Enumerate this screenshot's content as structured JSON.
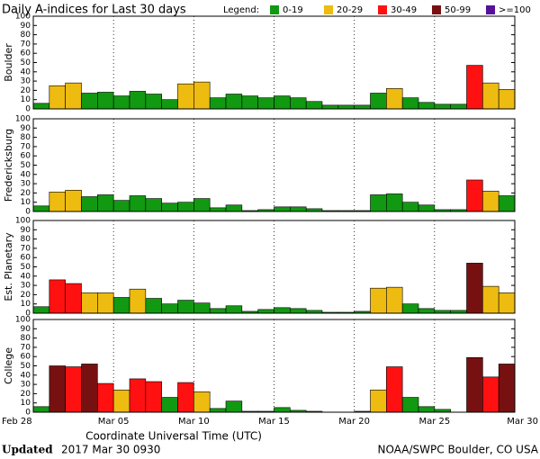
{
  "title": "Daily A-indices for Last 30 days",
  "legend": {
    "title": "Legend:",
    "items": [
      {
        "label": "0-19",
        "color": "#119911"
      },
      {
        "label": "20-29",
        "color": "#eebb11"
      },
      {
        "label": "30-49",
        "color": "#ff1111"
      },
      {
        "label": "50-99",
        "color": "#771111"
      },
      {
        "label": ">=100",
        "color": "#551199"
      }
    ]
  },
  "xaxis": {
    "label": "Coordinate Universal Time (UTC)",
    "xlim": [
      0,
      30
    ],
    "xticks": [
      {
        "value": 0,
        "label": "Feb 28"
      },
      {
        "value": 5,
        "label": "Mar 05"
      },
      {
        "value": 10,
        "label": "Mar 10"
      },
      {
        "value": 15,
        "label": "Mar 15"
      },
      {
        "value": 20,
        "label": "Mar 20"
      },
      {
        "value": 25,
        "label": "Mar 25"
      },
      {
        "value": 30,
        "label": "Mar 30"
      }
    ]
  },
  "chart_data": [
    {
      "type": "bar",
      "ylabel": "Boulder",
      "ylim": [
        0,
        100
      ],
      "yticks": [
        0,
        10,
        20,
        30,
        40,
        50,
        60,
        70,
        80,
        90,
        100
      ],
      "values": [
        6,
        25,
        28,
        17,
        18,
        14,
        19,
        16,
        10,
        27,
        29,
        12,
        16,
        14,
        12,
        14,
        12,
        8,
        4,
        4,
        4,
        17,
        22,
        12,
        7,
        5,
        5,
        47,
        28,
        21
      ],
      "colors": [
        "#119911",
        "#eebb11",
        "#eebb11",
        "#119911",
        "#119911",
        "#119911",
        "#119911",
        "#119911",
        "#119911",
        "#eebb11",
        "#eebb11",
        "#119911",
        "#119911",
        "#119911",
        "#119911",
        "#119911",
        "#119911",
        "#119911",
        "#119911",
        "#119911",
        "#119911",
        "#119911",
        "#eebb11",
        "#119911",
        "#119911",
        "#119911",
        "#119911",
        "#ff1111",
        "#eebb11",
        "#eebb11"
      ]
    },
    {
      "type": "bar",
      "ylabel": "Fredericksburg",
      "ylim": [
        0,
        100
      ],
      "yticks": [
        0,
        10,
        20,
        30,
        40,
        50,
        60,
        70,
        80,
        90,
        100
      ],
      "values": [
        6,
        21,
        23,
        16,
        18,
        12,
        17,
        14,
        9,
        10,
        14,
        4,
        7,
        1,
        2,
        5,
        5,
        3,
        1,
        1,
        1,
        18,
        19,
        10,
        7,
        2,
        2,
        34,
        22,
        17
      ],
      "colors": [
        "#119911",
        "#eebb11",
        "#eebb11",
        "#119911",
        "#119911",
        "#119911",
        "#119911",
        "#119911",
        "#119911",
        "#119911",
        "#119911",
        "#119911",
        "#119911",
        "#119911",
        "#119911",
        "#119911",
        "#119911",
        "#119911",
        "#119911",
        "#119911",
        "#119911",
        "#119911",
        "#119911",
        "#119911",
        "#119911",
        "#119911",
        "#119911",
        "#ff1111",
        "#eebb11",
        "#119911"
      ]
    },
    {
      "type": "bar",
      "ylabel": "Est. Planetary",
      "ylim": [
        0,
        100
      ],
      "yticks": [
        0,
        10,
        20,
        30,
        40,
        50,
        60,
        70,
        80,
        90,
        100
      ],
      "values": [
        7,
        36,
        32,
        22,
        22,
        17,
        26,
        16,
        10,
        14,
        11,
        5,
        8,
        2,
        4,
        6,
        5,
        3,
        1,
        1,
        2,
        27,
        28,
        10,
        5,
        3,
        3,
        54,
        29,
        22
      ],
      "colors": [
        "#119911",
        "#ff1111",
        "#ff1111",
        "#eebb11",
        "#eebb11",
        "#119911",
        "#eebb11",
        "#119911",
        "#119911",
        "#119911",
        "#119911",
        "#119911",
        "#119911",
        "#119911",
        "#119911",
        "#119911",
        "#119911",
        "#119911",
        "#119911",
        "#119911",
        "#119911",
        "#eebb11",
        "#eebb11",
        "#119911",
        "#119911",
        "#119911",
        "#119911",
        "#771111",
        "#eebb11",
        "#eebb11"
      ]
    },
    {
      "type": "bar",
      "ylabel": "College",
      "ylim": [
        0,
        100
      ],
      "yticks": [
        0,
        10,
        20,
        30,
        40,
        50,
        60,
        70,
        80,
        90,
        100
      ],
      "values": [
        6,
        50,
        49,
        52,
        31,
        24,
        36,
        33,
        16,
        32,
        22,
        4,
        12,
        1,
        1,
        5,
        2,
        1,
        0,
        0,
        1,
        24,
        49,
        16,
        6,
        3,
        0,
        59,
        38,
        52
      ],
      "colors": [
        "#119911",
        "#771111",
        "#ff1111",
        "#771111",
        "#ff1111",
        "#eebb11",
        "#ff1111",
        "#ff1111",
        "#119911",
        "#ff1111",
        "#eebb11",
        "#119911",
        "#119911",
        "#119911",
        "#119911",
        "#119911",
        "#119911",
        "#119911",
        "#119911",
        "#119911",
        "#119911",
        "#eebb11",
        "#ff1111",
        "#119911",
        "#119911",
        "#119911",
        "#119911",
        "#771111",
        "#ff1111",
        "#771111"
      ]
    }
  ],
  "footer": {
    "updated": "Updated",
    "timestamp": "2017 Mar 30 0930",
    "source": "NOAA/SWPC Boulder, CO USA"
  }
}
